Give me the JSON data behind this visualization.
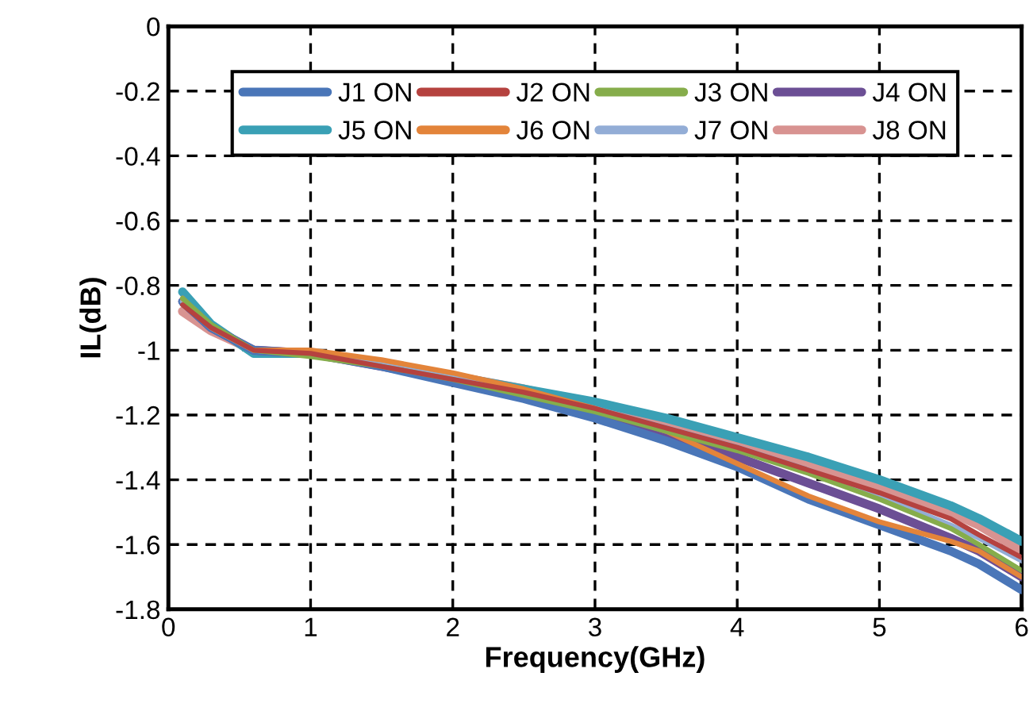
{
  "chart_data": {
    "type": "line",
    "xlabel": "Frequency(GHz)",
    "ylabel": "IL(dB)",
    "x": [
      0.1,
      0.3,
      0.6,
      1,
      1.5,
      2,
      2.5,
      3,
      3.5,
      4,
      4.5,
      5,
      5.5,
      5.7,
      6
    ],
    "xlim": [
      0,
      6
    ],
    "xticks": [
      0,
      1,
      2,
      3,
      4,
      5,
      6
    ],
    "ylim": [
      -1.8,
      0
    ],
    "yticks": [
      -1.8,
      -1.6,
      -1.4,
      -1.2,
      -1,
      -0.8,
      -0.6,
      -0.4,
      -0.2,
      0
    ],
    "grid": true,
    "legend": "top",
    "line_style": "solid",
    "marker": "none",
    "series": [
      {
        "name": "J1 ON",
        "color": "#4a76b8",
        "values": [
          -0.85,
          -0.93,
          -1.0,
          -1.01,
          -1.05,
          -1.1,
          -1.15,
          -1.21,
          -1.28,
          -1.36,
          -1.46,
          -1.54,
          -1.62,
          -1.66,
          -1.74
        ]
      },
      {
        "name": "J2 ON",
        "color": "#b5423f",
        "values": [
          -0.86,
          -0.93,
          -1.0,
          -1.01,
          -1.05,
          -1.09,
          -1.13,
          -1.18,
          -1.24,
          -1.3,
          -1.37,
          -1.44,
          -1.52,
          -1.57,
          -1.64
        ]
      },
      {
        "name": "J3 ON",
        "color": "#86ad4b",
        "values": [
          -0.84,
          -0.92,
          -1.0,
          -1.02,
          -1.05,
          -1.09,
          -1.14,
          -1.19,
          -1.25,
          -1.31,
          -1.38,
          -1.46,
          -1.55,
          -1.6,
          -1.68
        ]
      },
      {
        "name": "J4 ON",
        "color": "#6c4f95",
        "values": [
          -0.85,
          -0.93,
          -1.0,
          -1.01,
          -1.05,
          -1.09,
          -1.14,
          -1.19,
          -1.26,
          -1.33,
          -1.41,
          -1.49,
          -1.58,
          -1.62,
          -1.7
        ]
      },
      {
        "name": "J5 ON",
        "color": "#3aa0b5",
        "values": [
          -0.82,
          -0.92,
          -1.01,
          -1.01,
          -1.04,
          -1.08,
          -1.12,
          -1.16,
          -1.21,
          -1.27,
          -1.33,
          -1.4,
          -1.48,
          -1.52,
          -1.59
        ]
      },
      {
        "name": "J6 ON",
        "color": "#e3843a",
        "values": [
          -0.84,
          -0.93,
          -1.0,
          -1.0,
          -1.03,
          -1.07,
          -1.12,
          -1.18,
          -1.25,
          -1.35,
          -1.45,
          -1.53,
          -1.59,
          -1.62,
          -1.7
        ]
      },
      {
        "name": "J7 ON",
        "color": "#93add6",
        "values": [
          -0.85,
          -0.93,
          -1.0,
          -1.01,
          -1.04,
          -1.08,
          -1.13,
          -1.18,
          -1.24,
          -1.3,
          -1.37,
          -1.45,
          -1.54,
          -1.58,
          -1.65
        ]
      },
      {
        "name": "J8 ON",
        "color": "#d89391",
        "values": [
          -0.88,
          -0.94,
          -1.0,
          -1.01,
          -1.04,
          -1.08,
          -1.12,
          -1.17,
          -1.22,
          -1.28,
          -1.35,
          -1.42,
          -1.5,
          -1.54,
          -1.62
        ]
      }
    ]
  }
}
